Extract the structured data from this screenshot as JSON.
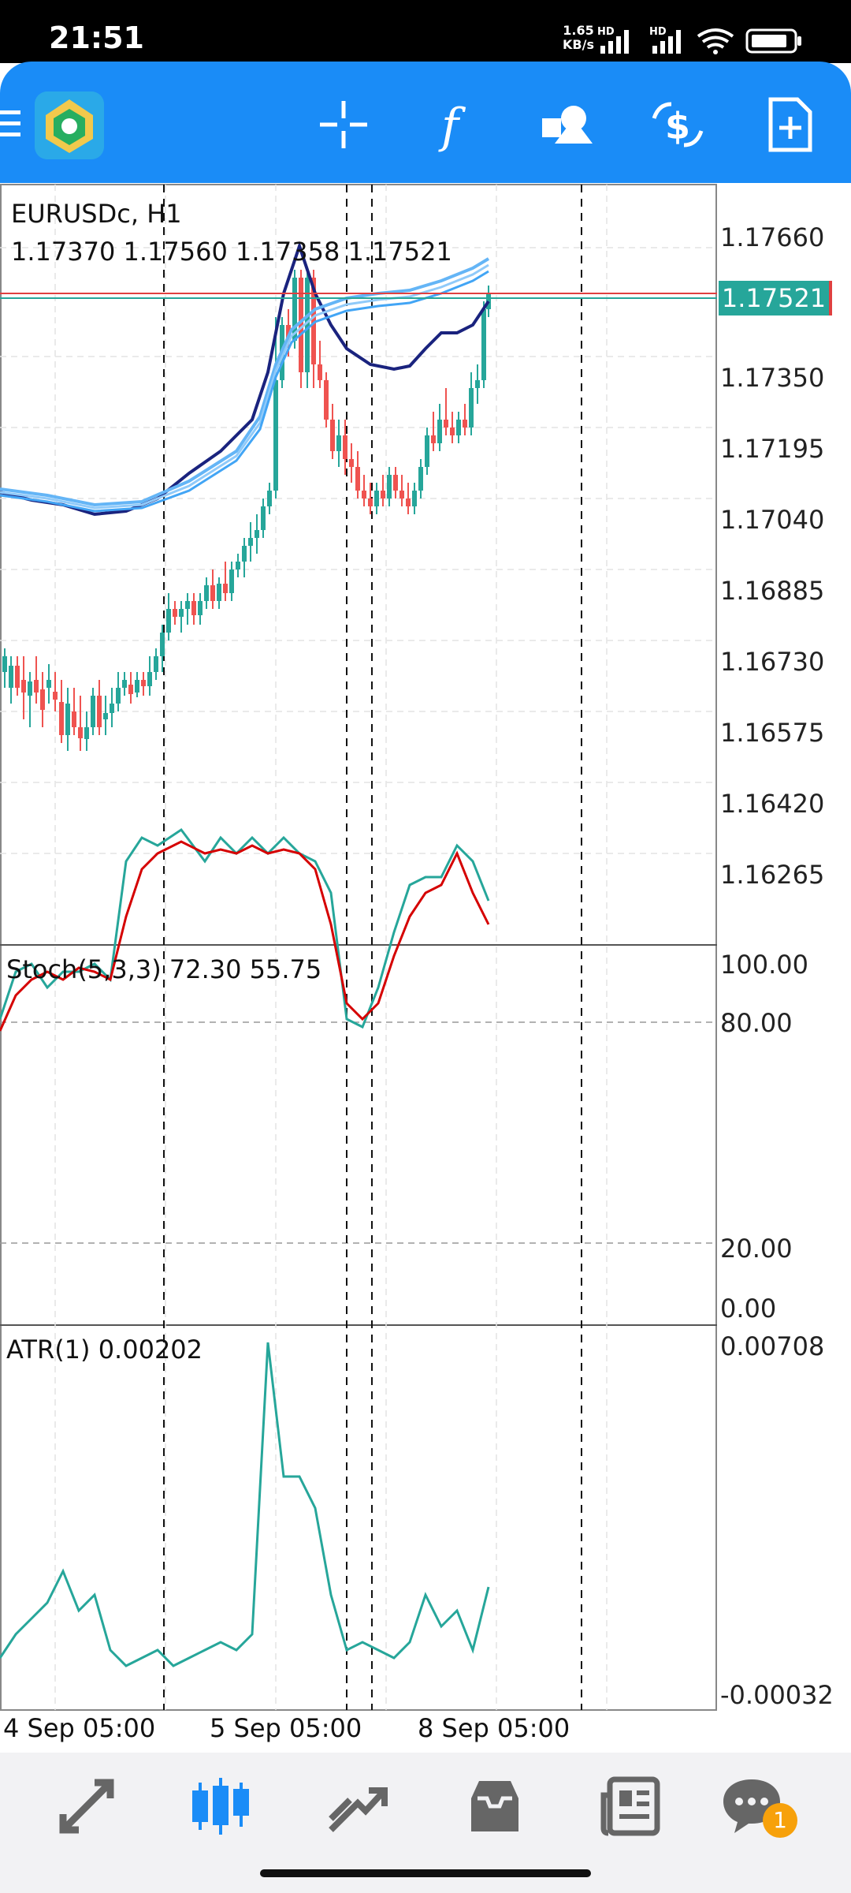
{
  "status_bar": {
    "time": "21:51",
    "net_speed": "1.65",
    "net_unit": "KB/s",
    "signal1": "HD",
    "signal2": "HD"
  },
  "toolbar": {
    "icons": [
      "menu-icon",
      "app-logo",
      "crosshair-icon",
      "function-icon",
      "objects-icon",
      "trade-icon",
      "new-order-icon"
    ]
  },
  "chart": {
    "symbol": "EURUSDc, H1",
    "ohlc": "1.17370 1.17560 1.17358 1.17521",
    "current_price": "1.17521",
    "price_labels": [
      "1.17660",
      "1.17350",
      "1.17195",
      "1.17040",
      "1.16885",
      "1.16730",
      "1.16575",
      "1.16420",
      "1.16265"
    ],
    "stoch_title": "Stoch(5,3,3) 72.30 55.75",
    "stoch_labels": [
      "100.00",
      "80.00",
      "20.00",
      "0.00"
    ],
    "atr_title": "ATR(1) 0.00202",
    "atr_labels": [
      "0.00708",
      "-0.00032"
    ],
    "dates": [
      "4 Sep 05:00",
      "5 Sep 05:00",
      "8 Sep 05:00"
    ],
    "colors": {
      "bull": "#26a69a",
      "bear": "#ef5350",
      "ma_dark": "#1a237e",
      "ma_light": "#64b5f6",
      "stoch_main": "#26a69a",
      "stoch_signal": "#d50000",
      "atr": "#26a69a"
    }
  },
  "bottom_nav": {
    "items": [
      "quotes-icon",
      "chart-icon",
      "trade-icon",
      "history-icon",
      "news-icon",
      "messages-icon"
    ],
    "badge": "1"
  }
}
